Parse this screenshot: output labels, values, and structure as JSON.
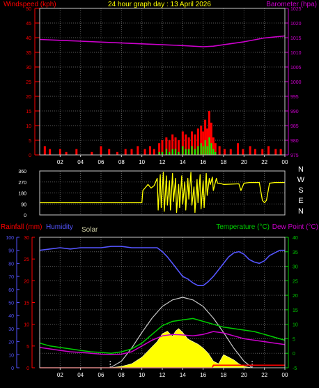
{
  "colors": {
    "background": "#000000",
    "frame": "#c8c8c8",
    "grid": "#5a5a5a",
    "axis_text": "#ffffff",
    "windspeed": "#ff0000",
    "gust": "#ff0000",
    "avg_wind": "#00ff00",
    "barometer": "#cc00cc",
    "wind_dir": "#ffff00",
    "humidity": "#5555ff",
    "rainfall": "#ff0000",
    "solar_line": "#c8c8c8",
    "solar_fill": "#ffff00",
    "temperature": "#00cc00",
    "dew_point": "#cc00cc",
    "compass_text": "#ffffff"
  },
  "chart_data": [
    {
      "type": "bar",
      "panel": "wind_baro",
      "title": "24 hour graph day : 13 April 2026",
      "ylabel_left": "Windspeed (kph)",
      "ylabel_right": "Barometer (hpa)",
      "ylim_left": [
        0,
        50
      ],
      "ylim_right": [
        975,
        1025
      ],
      "yticks_left": [
        0,
        5,
        10,
        15,
        20,
        25,
        30,
        35,
        40,
        45,
        50
      ],
      "yticks_right": [
        975,
        980,
        985,
        990,
        995,
        1000,
        1005,
        1010,
        1015,
        1020,
        1025
      ],
      "xlim": [
        0,
        24
      ],
      "xticks": [
        "02",
        "04",
        "06",
        "08",
        "10",
        "12",
        "14",
        "16",
        "18",
        "20",
        "22",
        "00"
      ],
      "grid": true,
      "barometer": {
        "x": [
          0,
          2,
          4,
          6,
          8,
          10,
          12,
          14,
          16,
          17,
          18,
          20,
          22,
          24
        ],
        "y": [
          1014.4,
          1014.1,
          1013.8,
          1013.5,
          1013.2,
          1012.9,
          1012.6,
          1012.3,
          1011.9,
          1012.1,
          1012.6,
          1013.6,
          1014.9,
          1015.6
        ]
      },
      "wind": {
        "x": [
          0.5,
          1.0,
          2.0,
          2.6,
          3.6,
          5.1,
          6.0,
          6.8,
          7.6,
          8.4,
          9.0,
          9.6,
          10.3,
          10.8,
          11.2,
          11.7,
          12.0,
          12.4,
          12.7,
          13.0,
          13.3,
          13.6,
          14.0,
          14.3,
          14.6,
          14.9,
          15.2,
          15.5,
          15.8,
          16.0,
          16.2,
          16.4,
          16.6,
          16.8,
          17.0,
          17.2,
          17.6,
          18.1,
          18.7,
          19.4,
          19.9,
          20.6,
          21.1,
          21.8,
          22.4,
          23.1,
          23.6
        ],
        "gust": [
          3,
          2,
          2,
          1,
          2,
          1,
          3,
          2,
          1,
          2,
          2,
          3,
          2,
          3,
          2,
          4,
          5,
          6,
          5,
          7,
          6,
          5,
          8,
          7,
          6,
          8,
          7,
          9,
          10,
          8,
          12,
          9,
          15,
          11,
          6,
          4,
          3,
          2,
          2,
          4,
          2,
          3,
          2,
          2,
          3,
          2,
          2
        ],
        "avg": [
          0,
          0,
          0,
          0,
          0,
          0,
          0,
          0,
          0,
          0,
          0,
          0,
          0,
          0,
          0,
          1,
          1,
          2,
          1,
          2,
          2,
          1,
          3,
          2,
          2,
          3,
          2,
          3,
          4,
          3,
          5,
          3,
          6,
          4,
          2,
          1,
          0,
          0,
          0,
          0,
          0,
          0,
          0,
          0,
          0,
          0,
          0
        ]
      }
    },
    {
      "type": "line",
      "panel": "wind_direction",
      "ylim": [
        0,
        360
      ],
      "yticks": [
        0,
        90,
        180,
        270,
        360
      ],
      "compass": [
        "N",
        "W",
        "S",
        "E",
        "N"
      ],
      "xlim": [
        0,
        24
      ],
      "grid": true,
      "series": [
        {
          "x": [
            0,
            2,
            4,
            6,
            8,
            9.5,
            10.0,
            10.1,
            10.3,
            10.6,
            10.9,
            11.2,
            11.5,
            11.6,
            11.8,
            11.9,
            12.1,
            12.2,
            12.4,
            12.5,
            12.7,
            12.8,
            13.0,
            13.1,
            13.3,
            13.4,
            13.6,
            13.7,
            13.9,
            14.0,
            14.2,
            14.3,
            14.5,
            14.6,
            14.8,
            14.9,
            15.1,
            15.2,
            15.4,
            15.5,
            15.7,
            15.8,
            16.0,
            16.1,
            16.3,
            16.4,
            16.6,
            16.7,
            16.9,
            17.0,
            17.2,
            17.3,
            17.4,
            17.6,
            18.0,
            19.5,
            19.7,
            20.0,
            20.5,
            21.5,
            21.8,
            22.0,
            22.2,
            22.5,
            23.0,
            24.0
          ],
          "y": [
            100,
            100,
            100,
            100,
            100,
            100,
            100,
            200,
            220,
            250,
            220,
            240,
            300,
            40,
            330,
            60,
            350,
            30,
            320,
            80,
            280,
            40,
            340,
            110,
            300,
            20,
            250,
            60,
            320,
            90,
            270,
            40,
            300,
            130,
            350,
            80,
            230,
            20,
            290,
            100,
            330,
            50,
            280,
            60,
            340,
            160,
            300,
            250,
            310,
            200,
            270,
            300,
            260,
            260,
            250,
            255,
            200,
            260,
            265,
            265,
            120,
            100,
            120,
            260,
            265,
            265
          ]
        }
      ]
    },
    {
      "type": "line",
      "panel": "temp_hum_rain_solar",
      "ylabel_left_1": "Rainfall (mm)",
      "ylabel_left_2": "Humidity",
      "ylabel_left_3": "Solar",
      "ylabel_right_1": "Temperature (°C)",
      "ylabel_right_2": "Dew Point (°C)",
      "ylim_rain": [
        0,
        30
      ],
      "yticks_rain": [
        0,
        5,
        10,
        15,
        20,
        25,
        30
      ],
      "ylim_humidity": [
        0,
        100
      ],
      "yticks_humidity": [
        0,
        10,
        20,
        30,
        40,
        50,
        60,
        70,
        80,
        90,
        100
      ],
      "ylim_temp": [
        -5,
        40
      ],
      "yticks_temp": [
        -5,
        0,
        5,
        10,
        15,
        20,
        25,
        30,
        35,
        40
      ],
      "xlim": [
        0,
        24
      ],
      "xticks": [
        "02",
        "04",
        "06",
        "08",
        "10",
        "12",
        "14",
        "16",
        "18",
        "20",
        "22",
        "00"
      ],
      "grid": true,
      "series": [
        {
          "name": "Humidity",
          "axis": "humidity",
          "x": [
            0,
            1,
            2,
            3,
            4,
            5,
            6,
            7,
            8,
            9,
            9.5,
            10,
            10.5,
            11,
            11.5,
            12,
            12.5,
            13,
            13.5,
            14,
            14.5,
            15,
            15.5,
            16,
            16.5,
            17,
            17.5,
            18,
            18.5,
            19,
            19.5,
            20,
            20.5,
            21,
            21.5,
            22,
            22.5,
            23,
            23.5,
            24
          ],
          "y": [
            90,
            91,
            92,
            91,
            92,
            92,
            92,
            93,
            93,
            92,
            92,
            92,
            92,
            92,
            92,
            89,
            85,
            80,
            75,
            70,
            68,
            65,
            63,
            63,
            66,
            70,
            75,
            80,
            85,
            88,
            89,
            87,
            83,
            81,
            80,
            82,
            86,
            88,
            90,
            90
          ]
        },
        {
          "name": "Temperature (°C)",
          "axis": "temp",
          "x": [
            0,
            1,
            2,
            3,
            4,
            5,
            6,
            7,
            8,
            9,
            10,
            11,
            12,
            13,
            14,
            15,
            16,
            17,
            18,
            19,
            20,
            21,
            22,
            23,
            24
          ],
          "y": [
            3.5,
            2.5,
            2.0,
            1.5,
            1.0,
            0.5,
            0.3,
            0.0,
            0.5,
            1.5,
            3.5,
            6.5,
            9.5,
            11.0,
            11.5,
            12.0,
            11.0,
            10.0,
            9.0,
            8.5,
            8.0,
            7.5,
            6.5,
            5.5,
            4.5
          ]
        },
        {
          "name": "Dew Point (°C)",
          "axis": "temp",
          "x": [
            0,
            1,
            2,
            3,
            4,
            5,
            6,
            7,
            8,
            9,
            10,
            11,
            12,
            13,
            14,
            15,
            16,
            17,
            18,
            19,
            20,
            21,
            22,
            23,
            24
          ],
          "y": [
            2.0,
            1.5,
            1.0,
            0.5,
            0.3,
            0.0,
            -0.3,
            -0.5,
            -0.3,
            0.5,
            2.5,
            4.5,
            6.0,
            6.5,
            6.3,
            6.0,
            6.5,
            7.5,
            7.0,
            6.0,
            5.0,
            4.5,
            4.0,
            3.5,
            3.0
          ]
        },
        {
          "name": "Rainfall (mm)",
          "axis": "rain",
          "x": [
            0,
            4,
            8,
            12,
            16,
            16.9,
            17.0,
            20.0,
            24.0
          ],
          "y": [
            0.0,
            0.0,
            0.0,
            0.0,
            0.0,
            0.0,
            0.6,
            0.6,
            0.6
          ]
        },
        {
          "name": "Solar max",
          "axis": "humidity",
          "x": [
            6.9,
            8,
            9,
            10,
            11,
            12,
            13,
            14,
            15,
            16,
            17,
            18,
            19,
            20,
            20.8
          ],
          "y": [
            0,
            5,
            15,
            27,
            38,
            47,
            52,
            54,
            52,
            47,
            38,
            27,
            15,
            5,
            0
          ]
        },
        {
          "name": "Solar",
          "axis": "humidity",
          "x": [
            6.9,
            8,
            9,
            10,
            10.5,
            11,
            11.5,
            12,
            12.5,
            13,
            13.3,
            13.6,
            14,
            14.5,
            15,
            15.5,
            16,
            16.5,
            17,
            17.5,
            18,
            18.5,
            19,
            19.5,
            20,
            20.8
          ],
          "y": [
            0,
            1,
            3,
            8,
            12,
            16,
            20,
            26,
            28,
            24,
            28,
            30,
            27,
            22,
            20,
            18,
            15,
            11,
            5,
            3,
            10,
            8,
            6,
            3,
            1,
            0
          ]
        }
      ]
    }
  ]
}
